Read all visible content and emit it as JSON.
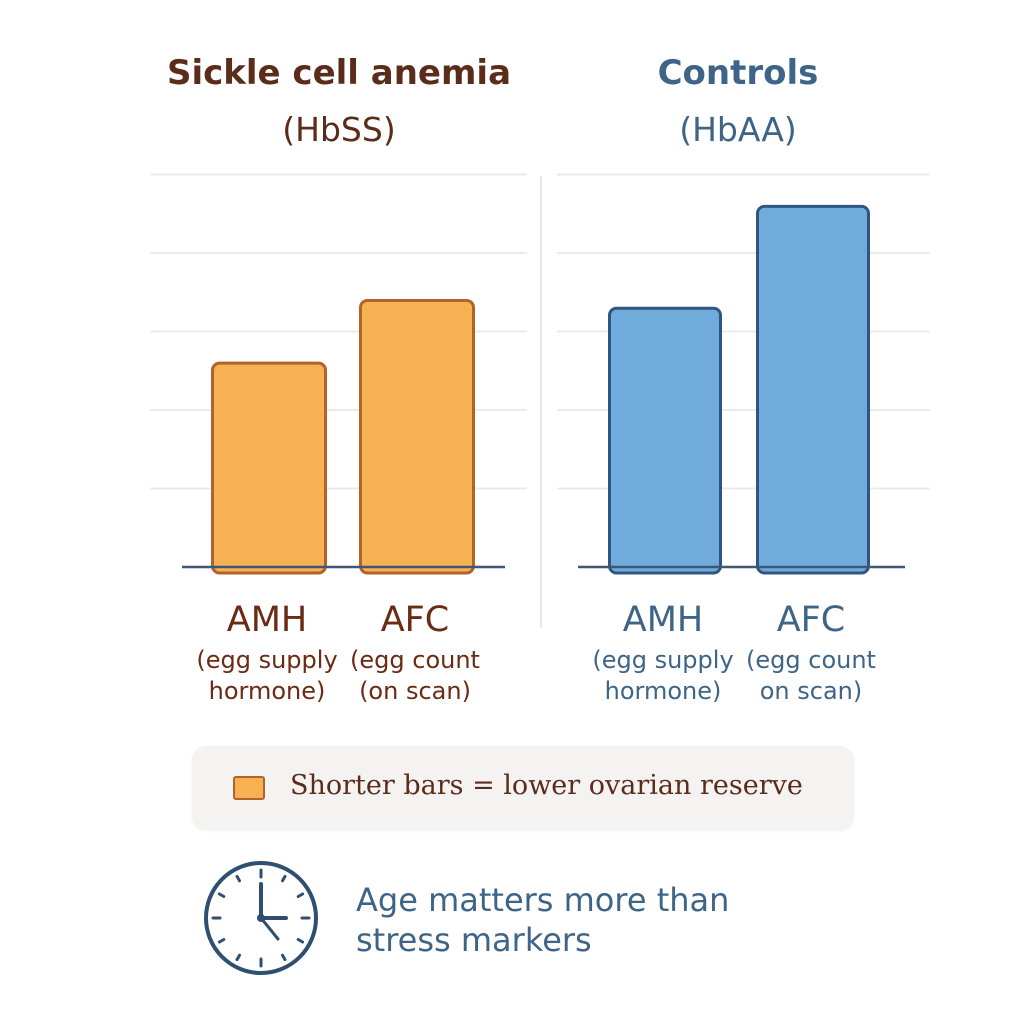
{
  "chart_data": [
    {
      "type": "bar",
      "title": "Sickle cell anemia",
      "subtitle": "(HbSS)",
      "categories": [
        {
          "label": "AMH",
          "desc_line1": "(egg supply",
          "desc_line2": "hormone)"
        },
        {
          "label": "AFC",
          "desc_line1": "(egg count",
          "desc_line2": "(on scan)"
        }
      ],
      "values": [
        2.6,
        3.4
      ],
      "ylim": [
        0,
        5
      ],
      "grid": true,
      "colors": {
        "fill": "#f8b152",
        "stroke": "#b0632b",
        "title": "#5b2c1a",
        "label": "#6b2a14"
      }
    },
    {
      "type": "bar",
      "title": "Controls",
      "subtitle": "(HbAA)",
      "categories": [
        {
          "label": "AMH",
          "desc_line1": "(egg supply",
          "desc_line2": "hormone)"
        },
        {
          "label": "AFC",
          "desc_line1": "(egg count",
          "desc_line2": "on scan)"
        }
      ],
      "values": [
        3.3,
        4.6
      ],
      "ylim": [
        0,
        5
      ],
      "grid": true,
      "colors": {
        "fill": "#70abdc",
        "stroke": "#2f5680",
        "title": "#3e6488",
        "label": "#3e6488"
      }
    }
  ],
  "legend": {
    "text": "Shorter bars = lower ovarian reserve",
    "swatch_color": "#f8b152"
  },
  "note": {
    "icon": "clock-icon",
    "line1": "Age matters more than",
    "line2": "stress markers"
  }
}
